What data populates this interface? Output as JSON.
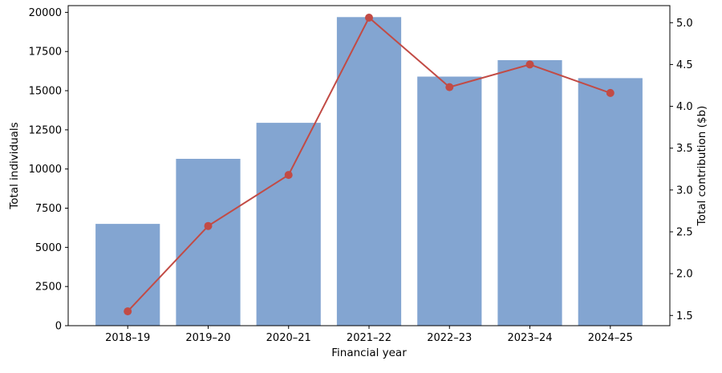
{
  "chart_data": {
    "type": "bar+line",
    "title": "",
    "xlabel": "Financial year",
    "ylabel_left": "Total individuals",
    "ylabel_right": "Total contribution ($b)",
    "categories": [
      "2018–19",
      "2019–20",
      "2020–21",
      "2021–22",
      "2022–23",
      "2023–24",
      "2024–25"
    ],
    "series": [
      {
        "name": "Total individuals",
        "type": "bar",
        "axis": "left",
        "color": "#83a5d1",
        "values": [
          6500,
          10650,
          12950,
          19700,
          15900,
          16950,
          15800
        ]
      },
      {
        "name": "Total contribution ($b)",
        "type": "line",
        "axis": "right",
        "color": "#c24b45",
        "marker": "circle",
        "values": [
          1.55,
          2.57,
          3.18,
          5.06,
          4.23,
          4.5,
          4.16
        ]
      }
    ],
    "left_axis": {
      "min": 0,
      "max": 20430,
      "ticks": [
        0,
        2500,
        5000,
        7500,
        10000,
        12500,
        15000,
        17500,
        20000
      ]
    },
    "right_axis": {
      "min": 1.378,
      "max": 5.204,
      "ticks": [
        1.5,
        2.0,
        2.5,
        3.0,
        3.5,
        4.0,
        4.5,
        5.0
      ]
    },
    "grid": false,
    "legend": "none",
    "spine_color": "#000000",
    "background": "#ffffff"
  }
}
